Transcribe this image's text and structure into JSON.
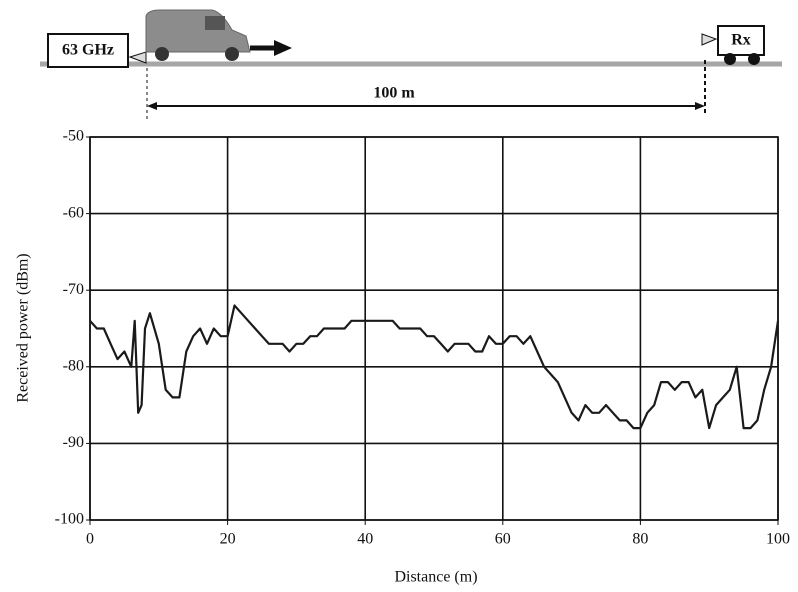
{
  "diagram": {
    "transmitter": "63 GHz",
    "receiver": "Rx",
    "distance": "100 m"
  },
  "chart_data": {
    "type": "line",
    "x_label": "Distance (m)",
    "y_label": "Received power (dBm)",
    "x": [
      0,
      1,
      2,
      3,
      4,
      5,
      6,
      6.5,
      7,
      7.5,
      8,
      8.7,
      10,
      11,
      12,
      13,
      14,
      15,
      16,
      17,
      18,
      19,
      20,
      21,
      22,
      23,
      24,
      25,
      26,
      27,
      28,
      29,
      30,
      31,
      32,
      33,
      34,
      35,
      36,
      37,
      38,
      39,
      40,
      41,
      42,
      43,
      44,
      45,
      46,
      47,
      48,
      49,
      50,
      51,
      52,
      53,
      54,
      55,
      56,
      57,
      58,
      59,
      60,
      61,
      62,
      63,
      64,
      65,
      66,
      67,
      68,
      69,
      70,
      71,
      72,
      73,
      74,
      75,
      76,
      77,
      78,
      79,
      80,
      81,
      82,
      83,
      84,
      85,
      86,
      87,
      88,
      89,
      90,
      91,
      92,
      93,
      94,
      95,
      96,
      97,
      98,
      99,
      100
    ],
    "values": [
      -74,
      -75,
      -75,
      -77,
      -79,
      -78,
      -80,
      -74,
      -86,
      -85,
      -75,
      -73,
      -77,
      -83,
      -84,
      -84,
      -78,
      -76,
      -75,
      -77,
      -75,
      -76,
      -76,
      -72,
      -73,
      -74,
      -75,
      -76,
      -77,
      -77,
      -77,
      -78,
      -77,
      -77,
      -76,
      -76,
      -75,
      -75,
      -75,
      -75,
      -74,
      -74,
      -74,
      -74,
      -74,
      -74,
      -74,
      -75,
      -75,
      -75,
      -75,
      -76,
      -76,
      -77,
      -78,
      -77,
      -77,
      -77,
      -78,
      -78,
      -76,
      -77,
      -77,
      -76,
      -76,
      -77,
      -76,
      -78,
      -80,
      -81,
      -82,
      -84,
      -86,
      -87,
      -85,
      -86,
      -86,
      -85,
      -86,
      -87,
      -87,
      -88,
      -88,
      -86,
      -85,
      -82,
      -82,
      -83,
      -82,
      -82,
      -84,
      -83,
      -88,
      -85,
      -84,
      -83,
      -80,
      -88,
      -88,
      -87,
      -83,
      -80,
      -74
    ],
    "color": "#1a1a1a",
    "xlim": [
      0,
      100
    ],
    "xticks": [
      0,
      20,
      40,
      60,
      80,
      100
    ],
    "ylim": [
      -100,
      -50
    ],
    "yticks": [
      -50,
      -60,
      -70,
      -80,
      -90,
      -100
    ],
    "grid": true
  }
}
